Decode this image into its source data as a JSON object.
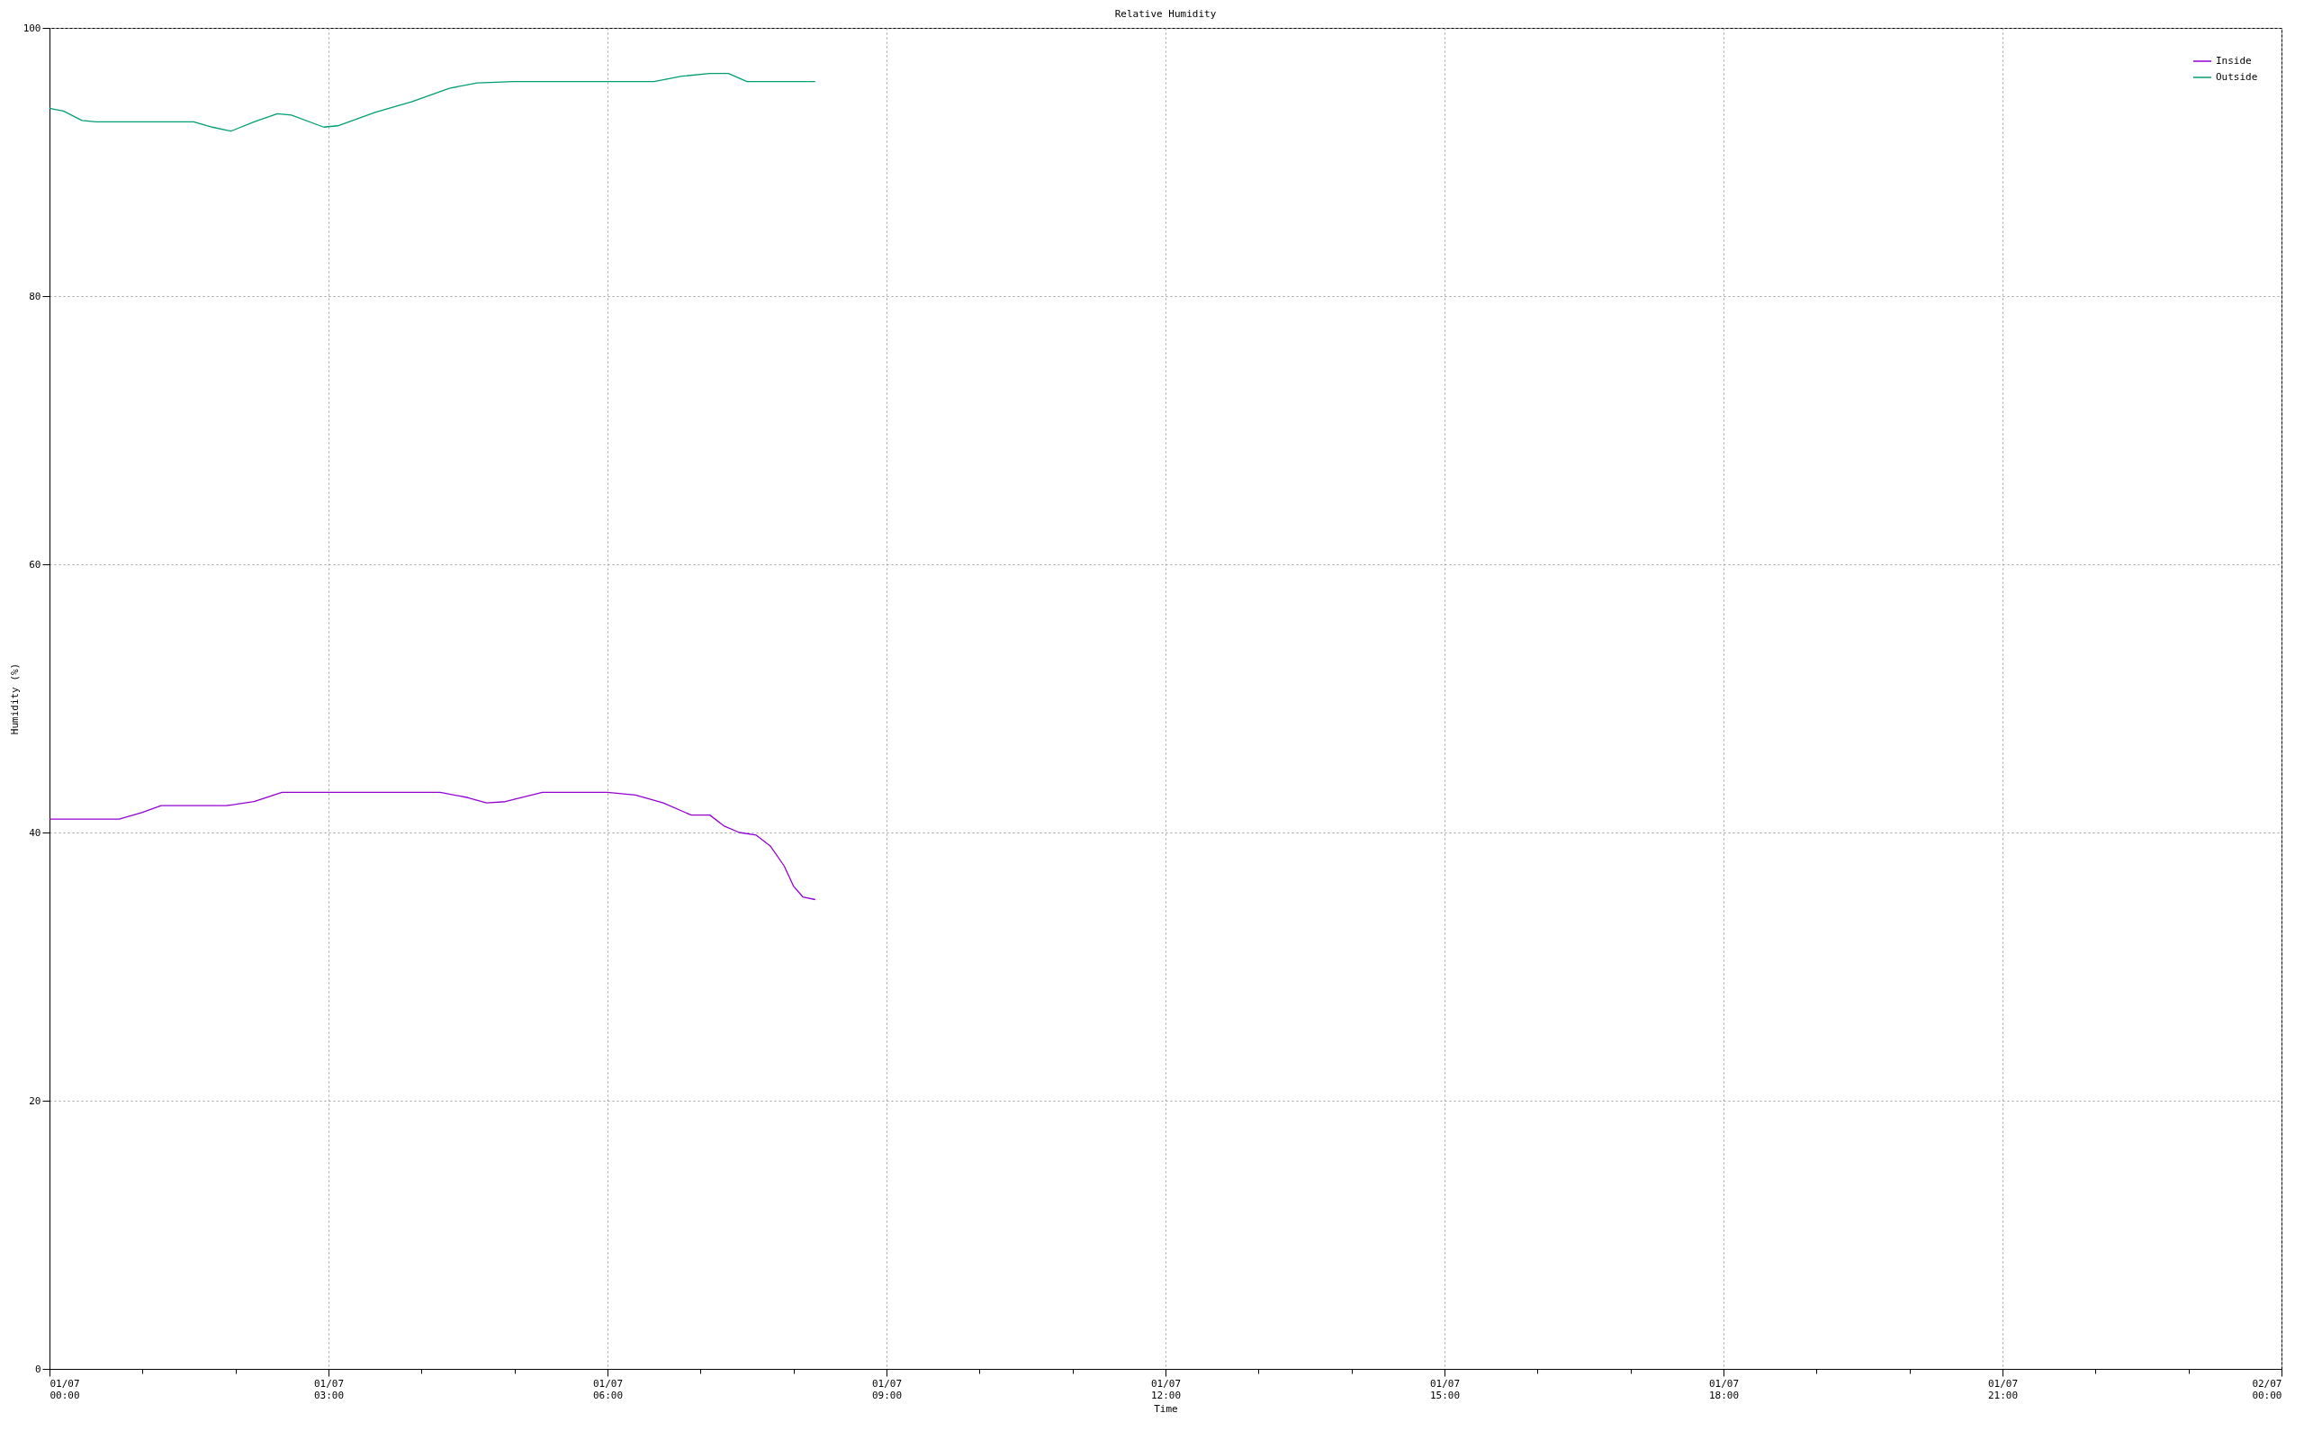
{
  "chart_data": {
    "type": "line",
    "title": "Relative Humidity",
    "xlabel": "Time",
    "ylabel": "Humidity (%)",
    "xlim": [
      "--07-01T00:00",
      "--07-02T00:00"
    ],
    "xticks": [
      {
        "value": "--07-01T00:00",
        "label": "01/07\n00:00"
      },
      {
        "value": "--07-01T01:00",
        "label": null
      },
      {
        "value": "--07-01T02:00",
        "label": null
      },
      {
        "value": "--07-01T03:00",
        "label": "01/07\n03:00"
      },
      {
        "value": "--07-01T04:00",
        "label": null
      },
      {
        "value": "--07-01T05:00",
        "label": null
      },
      {
        "value": "--07-01T06:00",
        "label": "01/07\n06:00"
      },
      {
        "value": "--07-01T07:00",
        "label": null
      },
      {
        "value": "--07-01T08:00",
        "label": null
      },
      {
        "value": "--07-01T09:00",
        "label": "01/07\n09:00"
      },
      {
        "value": "--07-01T10:00",
        "label": null
      },
      {
        "value": "--07-01T11:00",
        "label": null
      },
      {
        "value": "--07-01T12:00",
        "label": "01/07\n12:00"
      },
      {
        "value": "--07-01T13:00",
        "label": null
      },
      {
        "value": "--07-01T14:00",
        "label": null
      },
      {
        "value": "--07-01T15:00",
        "label": "01/07\n15:00"
      },
      {
        "value": "--07-01T16:00",
        "label": null
      },
      {
        "value": "--07-01T17:00",
        "label": null
      },
      {
        "value": "--07-01T18:00",
        "label": "01/07\n18:00"
      },
      {
        "value": "--07-01T19:00",
        "label": null
      },
      {
        "value": "--07-01T20:00",
        "label": null
      },
      {
        "value": "--07-01T21:00",
        "label": "01/07\n21:00"
      },
      {
        "value": "--07-01T22:00",
        "label": null
      },
      {
        "value": "--07-01T23:00",
        "label": null
      },
      {
        "value": "--07-02T00:00",
        "label": "02/07\n00:00"
      }
    ],
    "ylim": [
      0,
      100
    ],
    "yticks": [
      0,
      20,
      40,
      60,
      80,
      100
    ],
    "grid": true,
    "legend": "top right",
    "line_style": "solid",
    "series": [
      {
        "name": "Inside",
        "color": "#9400d3",
        "x": [
          "--07-01T00:00",
          "--07-01T00:45",
          "--07-01T01:00",
          "--07-01T01:12",
          "--07-01T01:54",
          "--07-01T02:12",
          "--07-01T02:30",
          "--07-01T04:12",
          "--07-01T04:30",
          "--07-01T04:42",
          "--07-01T04:54",
          "--07-01T05:18",
          "--07-01T06:00",
          "--07-01T06:18",
          "--07-01T06:36",
          "--07-01T06:54",
          "--07-01T07:06",
          "--07-01T07:15",
          "--07-01T07:25",
          "--07-01T07:36",
          "--07-01T07:45",
          "--07-01T07:54",
          "--07-01T08:00",
          "--07-01T08:06",
          "--07-01T08:14"
        ],
        "values": [
          41,
          41,
          41.5,
          42,
          42,
          42.3,
          43,
          43,
          42.6,
          42.2,
          42.3,
          43,
          43,
          42.8,
          42.2,
          41.3,
          41.3,
          40.5,
          40,
          39.8,
          39,
          37.5,
          36,
          35.2,
          35
        ]
      },
      {
        "name": "Outside",
        "color": "#009e73",
        "x": [
          "--07-01T00:00",
          "--07-01T00:09",
          "--07-01T00:21",
          "--07-01T00:30",
          "--07-01T01:33",
          "--07-01T01:45",
          "--07-01T01:57",
          "--07-01T02:12",
          "--07-01T02:27",
          "--07-01T02:36",
          "--07-01T02:57",
          "--07-01T03:06",
          "--07-01T03:30",
          "--07-01T03:54",
          "--07-01T04:18",
          "--07-01T04:36",
          "--07-01T05:00",
          "--07-01T06:30",
          "--07-01T06:48",
          "--07-01T07:06",
          "--07-01T07:18",
          "--07-01T07:30",
          "--07-01T08:14"
        ],
        "values": [
          94,
          93.8,
          93.1,
          93,
          93,
          92.6,
          92.3,
          93,
          93.6,
          93.5,
          92.6,
          92.7,
          93.7,
          94.5,
          95.5,
          95.9,
          96,
          96,
          96.4,
          96.6,
          96.6,
          96,
          96
        ]
      }
    ]
  }
}
